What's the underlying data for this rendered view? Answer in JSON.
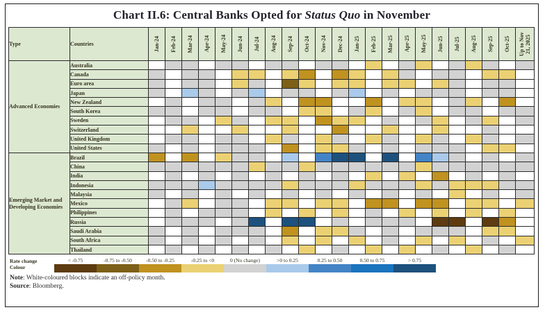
{
  "title": {
    "prefix": "Chart II.6: Central Banks Opted for ",
    "italic": "Status Quo",
    "suffix": " in November"
  },
  "table_headers": {
    "type": "Type",
    "countries": "Countries"
  },
  "legend": {
    "row_label_line1": "Rate change",
    "row_label_line2": "Colour",
    "categories": [
      {
        "code": "Y1",
        "label": "< -0.75",
        "color": "#5E3B10"
      },
      {
        "code": "Y2",
        "label": "-0.75 to -0.50",
        "color": "#7D6018"
      },
      {
        "code": "Y3",
        "label": "-0.50 to -0.25",
        "color": "#C0921F"
      },
      {
        "code": "Y4",
        "label": "-0.25 to <0",
        "color": "#EBD173"
      },
      {
        "code": "G",
        "label": "0 (No change)",
        "color": "#D2D2D2"
      },
      {
        "code": "B1",
        "label": ">0 to 0.25",
        "color": "#A9CAEA"
      },
      {
        "code": "B2",
        "label": "0.25 to 0.50",
        "color": "#4484C6"
      },
      {
        "code": "B3",
        "label": "0.50 to 0.75",
        "color": "#1B74BE"
      },
      {
        "code": "B4",
        "label": "> 0.75",
        "color": "#1D517E"
      }
    ],
    "off_policy_code": "W",
    "off_policy_color": "#FFFFFF"
  },
  "note": {
    "label": "Note",
    "text": ": White-coloured blocks indicate an off-policy month."
  },
  "source": {
    "label": "Source",
    "text": ": Bloomberg."
  },
  "colors": {
    "header_bg": "#DDE8D1",
    "border": "#2A2A2A",
    "title_text": "#23222C"
  },
  "chart_data": {
    "type": "heatmap",
    "title": "Chart II.6: Central Banks Opted for Status Quo in November",
    "x": [
      "Jan-24",
      "Feb-24",
      "Mar-24",
      "Apr-24",
      "May-24",
      "Jun-24",
      "Jul-24",
      "Aug-24",
      "Sep-24",
      "Oct-24",
      "Nov-24",
      "Dec-24",
      "Jan-25",
      "Feb-25",
      "Mar-25",
      "Apr-25",
      "May-25",
      "Jun-25",
      "Jul-25",
      "Aug-25",
      "Sep-25",
      "Oct-25",
      "Up to Nov 21, 2025"
    ],
    "value_meaning": "policy rate change in percentage points; W = off-policy month (white)",
    "cell_colors": {
      "W": "#FFFFFF",
      "G": "#D2D2D2",
      "Y1": "#5E3B10",
      "Y2": "#7D6018",
      "Y3": "#C0921F",
      "Y4": "#EBD173",
      "B1": "#A9CAEA",
      "B2": "#4484C6",
      "B3": "#1B74BE",
      "B4": "#1D517E"
    },
    "groups": [
      {
        "label": "Advanced Economies",
        "rows": [
          {
            "country": "Australia",
            "cells": [
              "W",
              "G",
              "G",
              "W",
              "G",
              "G",
              "W",
              "G",
              "G",
              "W",
              "G",
              "G",
              "W",
              "Y4",
              "W",
              "G",
              "Y4",
              "W",
              "G",
              "Y4",
              "G",
              "W",
              "G"
            ]
          },
          {
            "country": "Canada",
            "cells": [
              "G",
              "W",
              "G",
              "G",
              "W",
              "Y4",
              "Y4",
              "W",
              "Y4",
              "Y3",
              "W",
              "Y3",
              "Y4",
              "W",
              "Y4",
              "G",
              "W",
              "G",
              "G",
              "W",
              "Y4",
              "Y4",
              "W"
            ]
          },
          {
            "country": "Euro area",
            "cells": [
              "G",
              "W",
              "G",
              "G",
              "W",
              "Y4",
              "G",
              "W",
              "Y2",
              "Y4",
              "W",
              "Y4",
              "Y4",
              "W",
              "Y4",
              "Y4",
              "W",
              "Y4",
              "G",
              "W",
              "G",
              "G",
              "W"
            ]
          },
          {
            "country": "Japan",
            "cells": [
              "G",
              "W",
              "B1",
              "G",
              "W",
              "G",
              "B1",
              "W",
              "G",
              "G",
              "W",
              "G",
              "B1",
              "W",
              "G",
              "W",
              "G",
              "G",
              "G",
              "W",
              "G",
              "G",
              "W"
            ]
          },
          {
            "country": "New Zealand",
            "cells": [
              "W",
              "G",
              "W",
              "G",
              "G",
              "W",
              "G",
              "Y4",
              "W",
              "Y3",
              "Y3",
              "W",
              "W",
              "Y3",
              "W",
              "Y4",
              "Y4",
              "W",
              "G",
              "Y4",
              "W",
              "Y3",
              "W"
            ]
          },
          {
            "country": "South Korea",
            "cells": [
              "G",
              "G",
              "W",
              "G",
              "G",
              "W",
              "G",
              "G",
              "W",
              "Y4",
              "Y4",
              "W",
              "G",
              "Y4",
              "W",
              "G",
              "Y4",
              "W",
              "G",
              "G",
              "W",
              "G",
              "G"
            ]
          },
          {
            "country": "Sweden",
            "cells": [
              "W",
              "G",
              "G",
              "W",
              "Y4",
              "G",
              "W",
              "Y4",
              "Y4",
              "W",
              "Y3",
              "Y4",
              "Y4",
              "W",
              "G",
              "W",
              "G",
              "Y4",
              "W",
              "G",
              "Y4",
              "W",
              "G"
            ]
          },
          {
            "country": "Switzerland",
            "cells": [
              "W",
              "W",
              "Y4",
              "W",
              "W",
              "Y4",
              "W",
              "W",
              "Y4",
              "W",
              "W",
              "Y3",
              "W",
              "W",
              "Y4",
              "W",
              "W",
              "Y4",
              "W",
              "W",
              "G",
              "W",
              "W"
            ]
          },
          {
            "country": "United Kingdom",
            "cells": [
              "W",
              "G",
              "G",
              "W",
              "G",
              "G",
              "W",
              "Y4",
              "G",
              "W",
              "Y4",
              "G",
              "W",
              "Y4",
              "G",
              "W",
              "Y4",
              "G",
              "W",
              "Y4",
              "G",
              "W",
              "G"
            ]
          },
          {
            "country": "United States",
            "cells": [
              "G",
              "W",
              "G",
              "W",
              "G",
              "G",
              "G",
              "W",
              "Y3",
              "W",
              "Y4",
              "Y4",
              "G",
              "W",
              "G",
              "W",
              "G",
              "G",
              "G",
              "W",
              "Y4",
              "Y4",
              "W"
            ]
          }
        ]
      },
      {
        "label": "Emerging Market and Developing Economies",
        "rows": [
          {
            "country": "Brazil",
            "cells": [
              "Y3",
              "W",
              "Y3",
              "W",
              "Y4",
              "G",
              "G",
              "W",
              "B1",
              "W",
              "B2",
              "B4",
              "B4",
              "W",
              "B4",
              "W",
              "B2",
              "B1",
              "G",
              "W",
              "G",
              "W",
              "G"
            ]
          },
          {
            "country": "China",
            "cells": [
              "G",
              "G",
              "G",
              "G",
              "G",
              "G",
              "Y4",
              "G",
              "G",
              "Y4",
              "G",
              "G",
              "G",
              "G",
              "G",
              "G",
              "Y4",
              "G",
              "G",
              "G",
              "G",
              "G",
              "G"
            ]
          },
          {
            "country": "India",
            "cells": [
              "W",
              "G",
              "W",
              "G",
              "W",
              "G",
              "W",
              "G",
              "W",
              "G",
              "W",
              "G",
              "W",
              "Y4",
              "W",
              "Y4",
              "W",
              "Y3",
              "W",
              "G",
              "W",
              "G",
              "W"
            ]
          },
          {
            "country": "Indonesia",
            "cells": [
              "G",
              "G",
              "G",
              "B1",
              "G",
              "G",
              "G",
              "G",
              "Y4",
              "G",
              "G",
              "G",
              "Y4",
              "G",
              "G",
              "G",
              "Y4",
              "G",
              "Y4",
              "Y4",
              "Y4",
              "G",
              "G"
            ]
          },
          {
            "country": "Malaysia",
            "cells": [
              "G",
              "W",
              "G",
              "W",
              "G",
              "W",
              "G",
              "W",
              "G",
              "W",
              "G",
              "W",
              "G",
              "W",
              "G",
              "W",
              "G",
              "W",
              "Y4",
              "W",
              "G",
              "W",
              "G"
            ]
          },
          {
            "country": "Mexico",
            "cells": [
              "W",
              "G",
              "Y4",
              "W",
              "G",
              "G",
              "W",
              "Y4",
              "Y4",
              "W",
              "Y4",
              "Y4",
              "W",
              "Y3",
              "Y3",
              "W",
              "Y3",
              "Y3",
              "W",
              "Y4",
              "Y4",
              "W",
              "Y4"
            ]
          },
          {
            "country": "Philippines",
            "cells": [
              "W",
              "G",
              "W",
              "G",
              "G",
              "G",
              "W",
              "Y4",
              "W",
              "Y4",
              "W",
              "Y4",
              "W",
              "G",
              "W",
              "Y4",
              "W",
              "Y4",
              "W",
              "Y4",
              "W",
              "Y4",
              "W"
            ]
          },
          {
            "country": "Russia",
            "cells": [
              "W",
              "G",
              "G",
              "G",
              "W",
              "G",
              "B4",
              "W",
              "B4",
              "B4",
              "W",
              "G",
              "W",
              "G",
              "G",
              "G",
              "W",
              "Y1",
              "Y1",
              "W",
              "Y1",
              "Y3",
              "W"
            ]
          },
          {
            "country": "Saudi Arabia",
            "cells": [
              "G",
              "W",
              "G",
              "W",
              "G",
              "G",
              "G",
              "W",
              "Y3",
              "W",
              "Y4",
              "Y4",
              "G",
              "W",
              "G",
              "W",
              "G",
              "G",
              "G",
              "W",
              "Y4",
              "Y4",
              "W"
            ]
          },
          {
            "country": "South Africa",
            "cells": [
              "G",
              "W",
              "G",
              "W",
              "G",
              "W",
              "G",
              "W",
              "Y4",
              "W",
              "Y4",
              "W",
              "Y4",
              "W",
              "G",
              "W",
              "Y4",
              "W",
              "Y4",
              "W",
              "G",
              "W",
              "Y4"
            ]
          },
          {
            "country": "Thailand",
            "cells": [
              "W",
              "G",
              "W",
              "G",
              "W",
              "G",
              "W",
              "G",
              "W",
              "Y4",
              "W",
              "G",
              "W",
              "Y4",
              "W",
              "Y4",
              "W",
              "G",
              "W",
              "Y4",
              "W",
              "G",
              "W"
            ]
          }
        ]
      }
    ],
    "legend_title": "Rate change Colour",
    "legend_position": "bottom"
  }
}
